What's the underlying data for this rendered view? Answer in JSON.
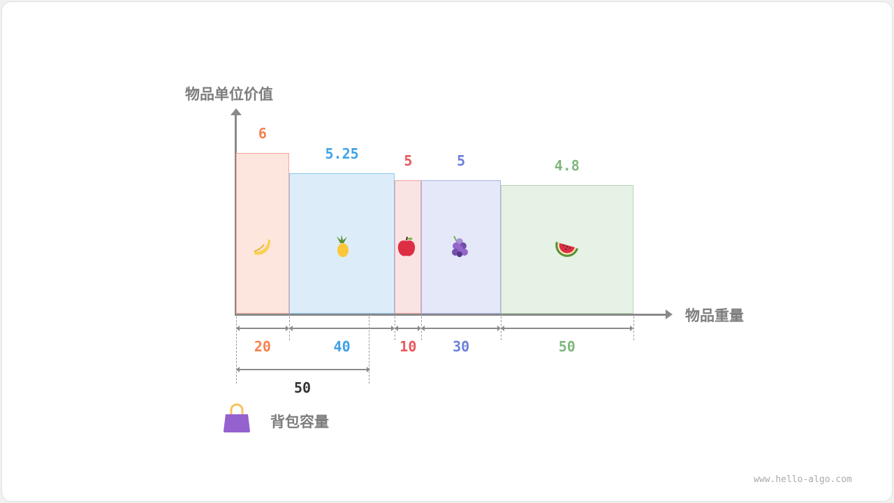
{
  "labels": {
    "y_axis": "物品单位价值",
    "x_axis": "物品重量",
    "capacity_label": "背包容量",
    "capacity_value": "50",
    "footer": "www.hello-algo.com"
  },
  "chart_data": {
    "type": "bar",
    "ylabel": "物品单位价值",
    "xlabel": "物品重量",
    "items": [
      {
        "icon": "banana-icon",
        "weight": 20,
        "unit_value": 6,
        "value_label": "6",
        "weight_label": "20",
        "color": "#f5814e",
        "fill": "#fde6dd",
        "border": "#f4a7a0"
      },
      {
        "icon": "pineapple-icon",
        "weight": 40,
        "unit_value": 5.25,
        "value_label": "5.25",
        "weight_label": "40",
        "color": "#3ea1e8",
        "fill": "#dcedf9",
        "border": "#8cc6ef"
      },
      {
        "icon": "apple-icon",
        "weight": 10,
        "unit_value": 5,
        "value_label": "5",
        "weight_label": "10",
        "color": "#e8585a",
        "fill": "#fae3e3",
        "border": "#f0a3a4"
      },
      {
        "icon": "grapes-icon",
        "weight": 30,
        "unit_value": 5,
        "value_label": "5",
        "weight_label": "30",
        "color": "#6b7fdb",
        "fill": "#e5e8f8",
        "border": "#a9b4ea"
      },
      {
        "icon": "watermelon-icon",
        "weight": 50,
        "unit_value": 4.8,
        "value_label": "4.8",
        "weight_label": "50",
        "color": "#7fb77e",
        "fill": "#e6f2e5",
        "border": "#b5d6b4"
      }
    ],
    "capacity": 50
  }
}
